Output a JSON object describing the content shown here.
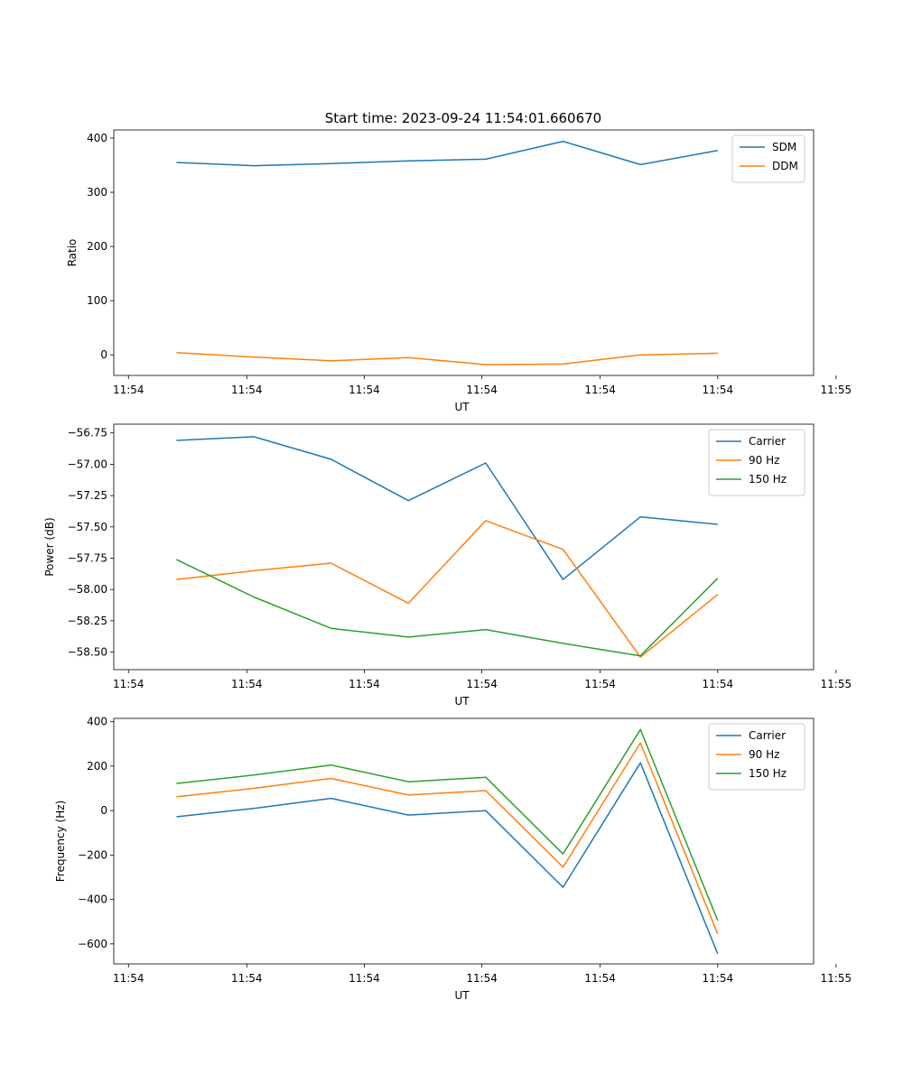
{
  "figure_title": "Start time: 2023-09-24 11:54:01.660670",
  "colors": {
    "c1": "#1f77b4",
    "c2": "#ff7f0e",
    "c3": "#2ca02c"
  },
  "chart_data": [
    {
      "type": "line",
      "title": "Start time: 2023-09-24 11:54:01.660670",
      "xlabel": "UT",
      "ylabel": "Ratio",
      "x": [
        1,
        2,
        3,
        4,
        5,
        6,
        7,
        8
      ],
      "xlim": [
        0.19,
        9.24
      ],
      "xticks": [
        0.38,
        1.91,
        3.43,
        4.95,
        6.48,
        8.0,
        9.53
      ],
      "xtick_labels": [
        "11:54",
        "11:54",
        "11:54",
        "11:54",
        "11:54",
        "11:54",
        "11:55"
      ],
      "ylim": [
        -38,
        415
      ],
      "yticks": [
        0,
        100,
        200,
        300,
        400
      ],
      "ytick_labels": [
        "0",
        "100",
        "200",
        "300",
        "400"
      ],
      "legend_position": "upper-right",
      "series": [
        {
          "name": "SDM",
          "color": "#1f77b4",
          "values": [
            355,
            349,
            353,
            358,
            361,
            394,
            351,
            377
          ]
        },
        {
          "name": "DDM",
          "color": "#ff7f0e",
          "values": [
            4,
            -4,
            -11,
            -5,
            -18,
            -17,
            0,
            3
          ]
        }
      ]
    },
    {
      "type": "line",
      "xlabel": "UT",
      "ylabel": "Power (dB)",
      "x": [
        1,
        2,
        3,
        4,
        5,
        6,
        7,
        8
      ],
      "xlim": [
        0.19,
        9.24
      ],
      "xticks": [
        0.38,
        1.91,
        3.43,
        4.95,
        6.48,
        8.0,
        9.53
      ],
      "xtick_labels": [
        "11:54",
        "11:54",
        "11:54",
        "11:54",
        "11:54",
        "11:54",
        "11:55"
      ],
      "ylim": [
        -58.64,
        -56.68
      ],
      "yticks": [
        -56.75,
        -57.0,
        -57.25,
        -57.5,
        -57.75,
        -58.0,
        -58.25,
        -58.5
      ],
      "ytick_labels": [
        "−56.75",
        "−57.00",
        "−57.25",
        "−57.50",
        "−57.75",
        "−58.00",
        "−58.25",
        "−58.50"
      ],
      "legend_position": "upper-right",
      "series": [
        {
          "name": "Carrier",
          "color": "#1f77b4",
          "values": [
            -56.81,
            -56.78,
            -56.96,
            -57.29,
            -56.99,
            -57.92,
            -57.42,
            -57.48
          ]
        },
        {
          "name": "90 Hz",
          "color": "#ff7f0e",
          "values": [
            -57.92,
            -57.85,
            -57.79,
            -58.11,
            -57.45,
            -57.68,
            -58.54,
            -58.04
          ]
        },
        {
          "name": "150 Hz",
          "color": "#2ca02c",
          "values": [
            -57.76,
            -58.06,
            -58.31,
            -58.38,
            -58.32,
            -58.43,
            -58.53,
            -57.91
          ]
        }
      ]
    },
    {
      "type": "line",
      "xlabel": "UT",
      "ylabel": "Frequency (Hz)",
      "x": [
        1,
        2,
        3,
        4,
        5,
        6,
        7,
        8
      ],
      "xlim": [
        0.19,
        9.24
      ],
      "xticks": [
        0.38,
        1.91,
        3.43,
        4.95,
        6.48,
        8.0,
        9.53
      ],
      "xtick_labels": [
        "11:54",
        "11:54",
        "11:54",
        "11:54",
        "11:54",
        "11:54",
        "11:55"
      ],
      "ylim": [
        -690,
        415
      ],
      "yticks": [
        -600,
        -400,
        -200,
        0,
        200,
        400
      ],
      "ytick_labels": [
        "−600",
        "−400",
        "−200",
        "0",
        "200",
        "400"
      ],
      "legend_position": "upper-right",
      "series": [
        {
          "name": "Carrier",
          "color": "#1f77b4",
          "values": [
            -28,
            10,
            55,
            -20,
            0,
            -345,
            215,
            -645
          ]
        },
        {
          "name": "90 Hz",
          "color": "#ff7f0e",
          "values": [
            62,
            100,
            145,
            70,
            90,
            -255,
            305,
            -555
          ]
        },
        {
          "name": "150 Hz",
          "color": "#2ca02c",
          "values": [
            122,
            160,
            205,
            130,
            150,
            -195,
            365,
            -495
          ]
        }
      ]
    }
  ]
}
